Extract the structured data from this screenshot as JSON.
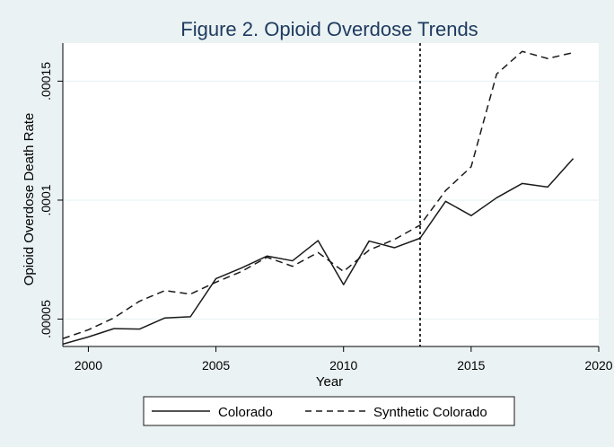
{
  "chart_data": {
    "type": "line",
    "title": "Figure 2. Opioid Overdose Trends",
    "xlabel": "Year",
    "ylabel": "Opioid Overdose Death Rate",
    "xlim": [
      1999,
      2020
    ],
    "ylim": [
      3.85e-05,
      0.000166
    ],
    "xticks": [
      2000,
      2005,
      2010,
      2015,
      2020
    ],
    "xtick_labels": [
      "2000",
      "2005",
      "2010",
      "2015",
      "2020"
    ],
    "yticks": [
      5e-05,
      0.0001,
      0.00015
    ],
    "ytick_labels": [
      ".00005",
      ".0001",
      ".00015"
    ],
    "grid": "horizontal",
    "legend_position": "bottom",
    "reference_line": {
      "x": 2013,
      "style": "dotted"
    },
    "x": [
      1999,
      2000,
      2001,
      2002,
      2003,
      2004,
      2005,
      2006,
      2007,
      2008,
      2009,
      2010,
      2011,
      2012,
      2013,
      2014,
      2015,
      2016,
      2017,
      2018,
      2019
    ],
    "series": [
      {
        "name": "Colorado",
        "style": "solid",
        "values": [
          3.95e-05,
          4.25e-05,
          4.6e-05,
          4.58e-05,
          5.05e-05,
          5.1e-05,
          6.7e-05,
          7.15e-05,
          7.65e-05,
          7.45e-05,
          8.3e-05,
          6.45e-05,
          8.28e-05,
          8e-05,
          8.4e-05,
          9.95e-05,
          9.35e-05,
          0.000101,
          0.000107,
          0.0001055,
          0.0001175
        ]
      },
      {
        "name": "Synthetic Colorado",
        "style": "dashed",
        "values": [
          4.18e-05,
          4.55e-05,
          5.05e-05,
          5.75e-05,
          6.2e-05,
          6.05e-05,
          6.55e-05,
          7e-05,
          7.6e-05,
          7.22e-05,
          7.8e-05,
          7e-05,
          7.9e-05,
          8.35e-05,
          8.95e-05,
          0.000104,
          0.000114,
          0.000153,
          0.0001625,
          0.0001595,
          0.000162
        ]
      }
    ]
  },
  "colors": {
    "background": "#eaf2f3",
    "plot_background": "#ffffff",
    "line": "#1a1a1a",
    "title": "#1e3a5f",
    "grid": "#eaf2f3"
  }
}
